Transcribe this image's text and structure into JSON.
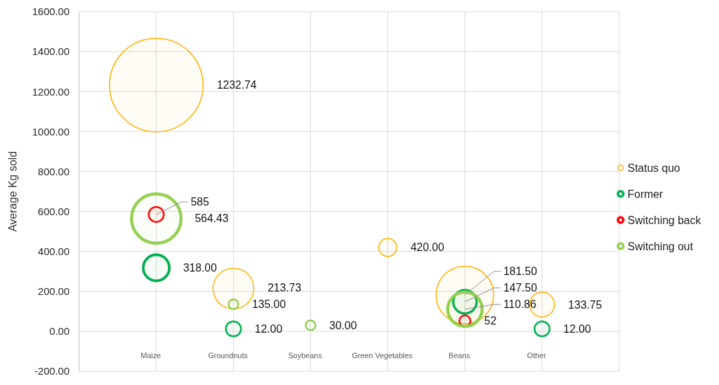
{
  "chart_data": {
    "type": "bubble",
    "ylabel": "Average Kg sold",
    "categories": [
      "Maize",
      "Groundnuts",
      "Soybeans",
      "Green Vegetables",
      "Beans",
      "Other"
    ],
    "ylim": [
      -200,
      1600
    ],
    "yticks": [
      {
        "value": -200,
        "label": "-200.00"
      },
      {
        "value": 0,
        "label": "0.00"
      },
      {
        "value": 200,
        "label": "200.00"
      },
      {
        "value": 400,
        "label": "400.00"
      },
      {
        "value": 600,
        "label": "600.00"
      },
      {
        "value": 800,
        "label": "800.00"
      },
      {
        "value": 1000,
        "label": "1000.00"
      },
      {
        "value": 1200,
        "label": "1200.00"
      },
      {
        "value": 1400,
        "label": "1400.00"
      },
      {
        "value": 1600,
        "label": "1600.00"
      }
    ],
    "grid": true,
    "legend": "right",
    "marker": "circle",
    "series": [
      {
        "name": "Status quo",
        "color": "#ffb000",
        "values": [
          1232.74,
          213.73,
          null,
          420.0,
          181.5,
          133.75
        ],
        "sizes": [
          1,
          0.19,
          null,
          0.037,
          0.38,
          0.07
        ],
        "value_labels": [
          "1232.74",
          "213.73",
          null,
          "420.00",
          "181.50",
          "133.75"
        ]
      },
      {
        "name": "Former",
        "color": "#00b050",
        "values": [
          318.0,
          12.0,
          null,
          null,
          147.5,
          12.0
        ],
        "sizes": [
          0.078,
          0.026,
          null,
          null,
          0.0625,
          0.026
        ],
        "value_labels": [
          "318.00",
          "12.00",
          null,
          null,
          "147.50",
          "12.00"
        ]
      },
      {
        "name": "Switching back",
        "color": "#ff0000",
        "values": [
          585,
          null,
          null,
          null,
          52,
          null
        ],
        "sizes": [
          0.026,
          null,
          null,
          null,
          0.014,
          null
        ],
        "value_labels": [
          "585",
          null,
          null,
          null,
          "52",
          null
        ]
      },
      {
        "name": "Switching out",
        "color": "#92d050",
        "values": [
          564.43,
          135.0,
          30.0,
          null,
          110.86,
          null
        ],
        "sizes": [
          0.28,
          0.011,
          0.011,
          null,
          0.135,
          null
        ],
        "value_labels": [
          "564.43",
          "135.00",
          "30.00",
          null,
          "110.86",
          null
        ]
      }
    ]
  }
}
